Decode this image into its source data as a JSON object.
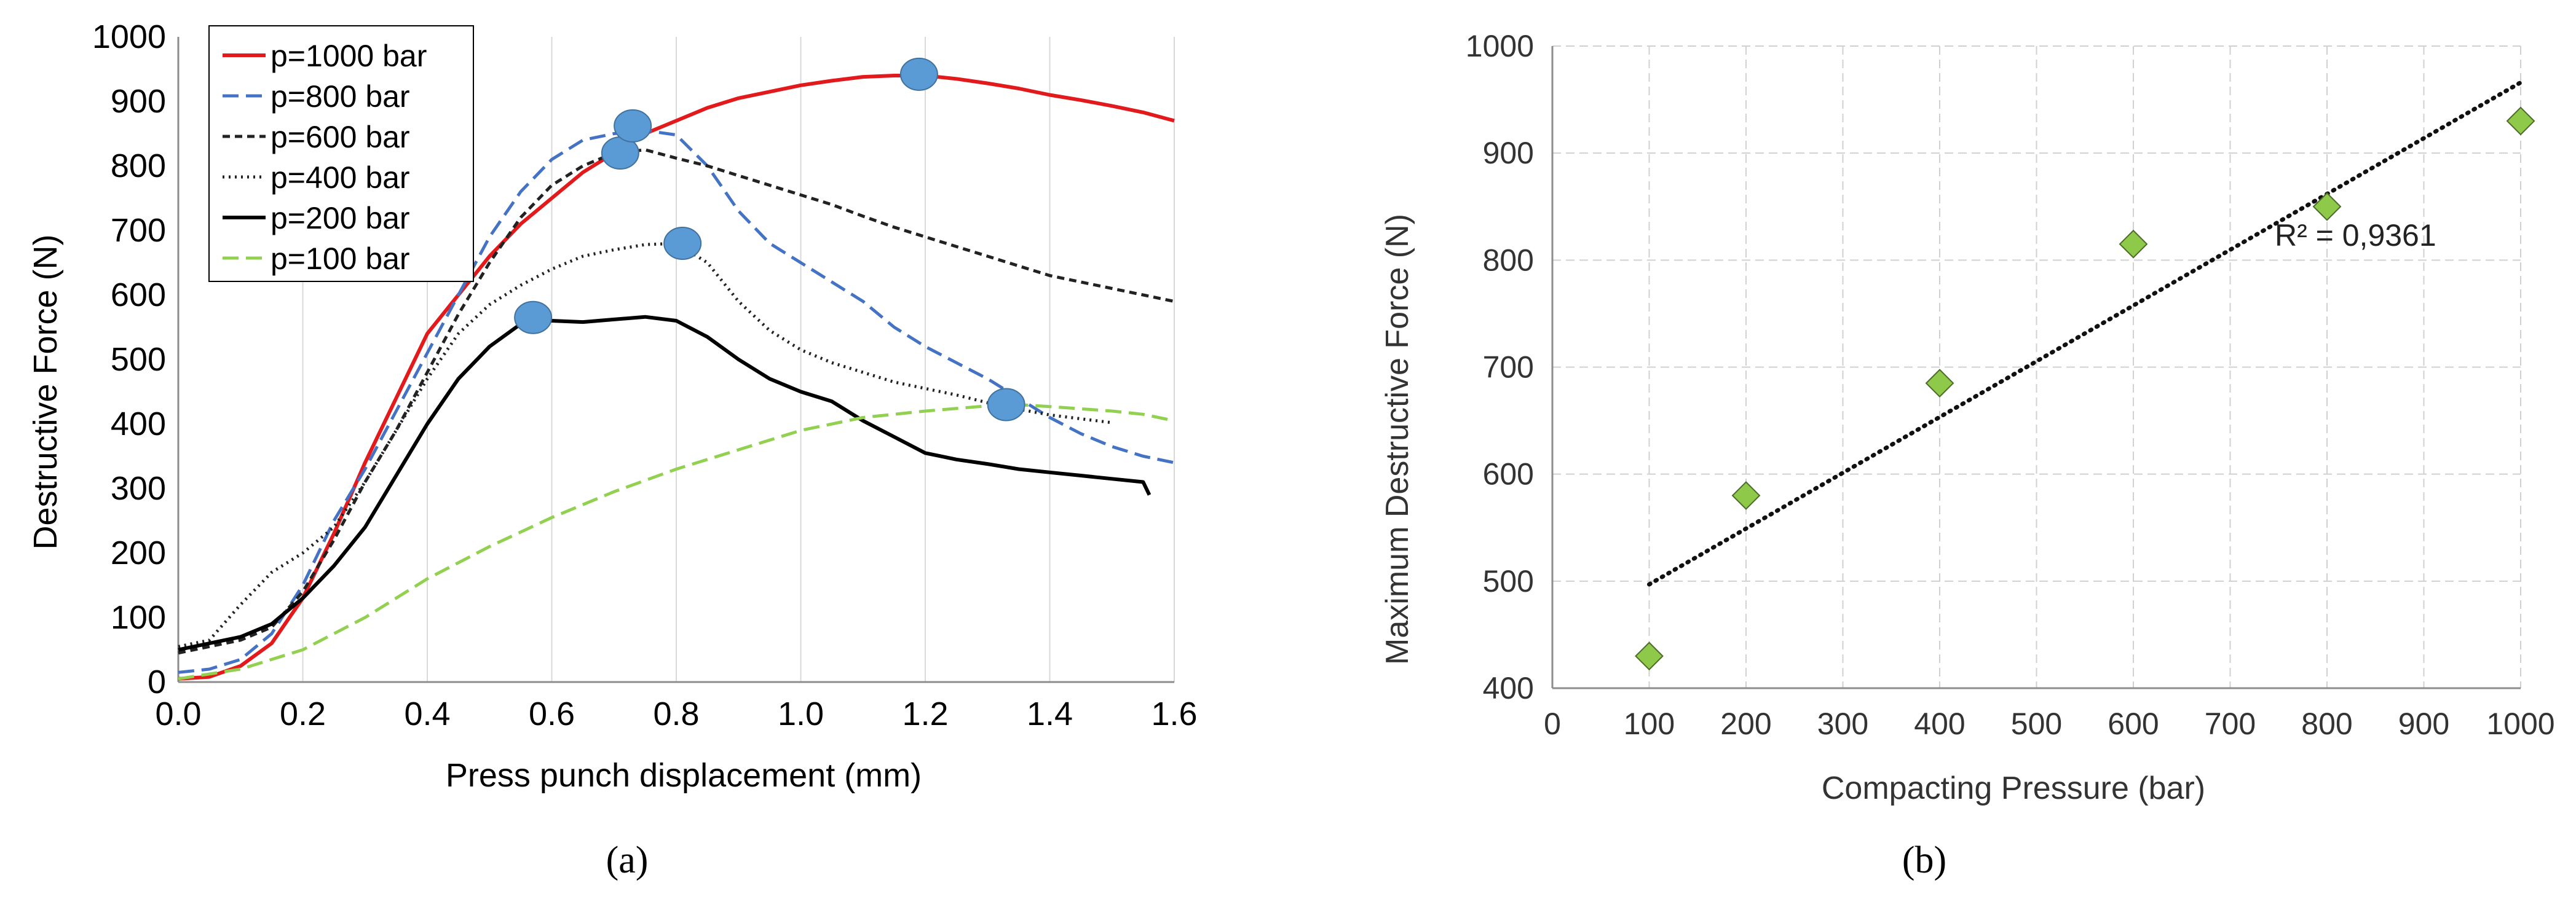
{
  "chart_data": [
    {
      "type": "line",
      "panel_label": "(a)",
      "title": "",
      "xlabel": "Press punch displacement (mm)",
      "ylabel": "Destructive Force (N)",
      "xlim": [
        0,
        1.6
      ],
      "ylim": [
        0,
        1000
      ],
      "xticks": [
        "0.0",
        "0.2",
        "0.4",
        "0.6",
        "0.8",
        "1.0",
        "1.2",
        "1.4",
        "1.6"
      ],
      "yticks": [
        "0",
        "100",
        "200",
        "300",
        "400",
        "500",
        "600",
        "700",
        "800",
        "900",
        "1000"
      ],
      "grid": "vertical",
      "legend_position": "top-left",
      "series": [
        {
          "name": "p=1000 bar",
          "color": "#e31a1c",
          "style": "solid",
          "points": [
            [
              0,
              5
            ],
            [
              0.05,
              8
            ],
            [
              0.1,
              25
            ],
            [
              0.15,
              60
            ],
            [
              0.2,
              130
            ],
            [
              0.25,
              230
            ],
            [
              0.3,
              340
            ],
            [
              0.35,
              440
            ],
            [
              0.4,
              540
            ],
            [
              0.45,
              600
            ],
            [
              0.5,
              660
            ],
            [
              0.55,
              710
            ],
            [
              0.6,
              750
            ],
            [
              0.65,
              790
            ],
            [
              0.7,
              820
            ],
            [
              0.75,
              850
            ],
            [
              0.8,
              870
            ],
            [
              0.85,
              890
            ],
            [
              0.9,
              905
            ],
            [
              0.95,
              915
            ],
            [
              1.0,
              925
            ],
            [
              1.05,
              932
            ],
            [
              1.1,
              938
            ],
            [
              1.15,
              940
            ],
            [
              1.2,
              940
            ],
            [
              1.25,
              935
            ],
            [
              1.3,
              928
            ],
            [
              1.35,
              920
            ],
            [
              1.4,
              910
            ],
            [
              1.45,
              902
            ],
            [
              1.5,
              893
            ],
            [
              1.55,
              883
            ],
            [
              1.6,
              870
            ]
          ]
        },
        {
          "name": "p=800 bar",
          "color": "#4472c4",
          "style": "dashed",
          "points": [
            [
              0,
              15
            ],
            [
              0.05,
              20
            ],
            [
              0.1,
              35
            ],
            [
              0.15,
              75
            ],
            [
              0.2,
              150
            ],
            [
              0.25,
              250
            ],
            [
              0.3,
              330
            ],
            [
              0.35,
              420
            ],
            [
              0.4,
              510
            ],
            [
              0.45,
              600
            ],
            [
              0.5,
              690
            ],
            [
              0.55,
              760
            ],
            [
              0.6,
              810
            ],
            [
              0.65,
              840
            ],
            [
              0.7,
              850
            ],
            [
              0.75,
              855
            ],
            [
              0.8,
              848
            ],
            [
              0.85,
              800
            ],
            [
              0.9,
              730
            ],
            [
              0.95,
              680
            ],
            [
              1.0,
              650
            ],
            [
              1.05,
              620
            ],
            [
              1.1,
              590
            ],
            [
              1.15,
              550
            ],
            [
              1.2,
              520
            ],
            [
              1.25,
              495
            ],
            [
              1.3,
              470
            ],
            [
              1.35,
              440
            ],
            [
              1.4,
              410
            ],
            [
              1.45,
              385
            ],
            [
              1.5,
              365
            ],
            [
              1.55,
              350
            ],
            [
              1.6,
              340
            ]
          ]
        },
        {
          "name": "p=600 bar",
          "color": "#222222",
          "style": "short-dash",
          "points": [
            [
              0,
              45
            ],
            [
              0.05,
              55
            ],
            [
              0.1,
              65
            ],
            [
              0.15,
              85
            ],
            [
              0.2,
              140
            ],
            [
              0.25,
              220
            ],
            [
              0.3,
              310
            ],
            [
              0.35,
              390
            ],
            [
              0.4,
              480
            ],
            [
              0.45,
              570
            ],
            [
              0.5,
              650
            ],
            [
              0.55,
              720
            ],
            [
              0.6,
              770
            ],
            [
              0.65,
              800
            ],
            [
              0.7,
              820
            ],
            [
              0.75,
              825
            ],
            [
              0.8,
              812
            ],
            [
              0.85,
              800
            ],
            [
              0.9,
              785
            ],
            [
              0.95,
              770
            ],
            [
              1.0,
              755
            ],
            [
              1.05,
              740
            ],
            [
              1.1,
              722
            ],
            [
              1.15,
              705
            ],
            [
              1.2,
              690
            ],
            [
              1.25,
              675
            ],
            [
              1.3,
              660
            ],
            [
              1.35,
              645
            ],
            [
              1.4,
              630
            ],
            [
              1.45,
              620
            ],
            [
              1.5,
              610
            ],
            [
              1.55,
              600
            ],
            [
              1.6,
              590
            ]
          ]
        },
        {
          "name": "p=400 bar",
          "color": "#222222",
          "style": "dotted",
          "points": [
            [
              0,
              55
            ],
            [
              0.05,
              65
            ],
            [
              0.1,
              120
            ],
            [
              0.15,
              170
            ],
            [
              0.2,
              200
            ],
            [
              0.25,
              240
            ],
            [
              0.3,
              310
            ],
            [
              0.35,
              390
            ],
            [
              0.4,
              470
            ],
            [
              0.45,
              540
            ],
            [
              0.5,
              585
            ],
            [
              0.55,
              615
            ],
            [
              0.6,
              640
            ],
            [
              0.65,
              660
            ],
            [
              0.7,
              670
            ],
            [
              0.75,
              678
            ],
            [
              0.8,
              680
            ],
            [
              0.85,
              650
            ],
            [
              0.9,
              590
            ],
            [
              0.95,
              545
            ],
            [
              1.0,
              515
            ],
            [
              1.05,
              495
            ],
            [
              1.1,
              480
            ],
            [
              1.15,
              465
            ],
            [
              1.2,
              455
            ],
            [
              1.25,
              445
            ],
            [
              1.3,
              433
            ],
            [
              1.35,
              423
            ],
            [
              1.4,
              414
            ],
            [
              1.45,
              408
            ],
            [
              1.5,
              402
            ]
          ]
        },
        {
          "name": "p=200 bar",
          "color": "#000000",
          "style": "solid",
          "points": [
            [
              0,
              50
            ],
            [
              0.05,
              60
            ],
            [
              0.1,
              70
            ],
            [
              0.15,
              90
            ],
            [
              0.2,
              130
            ],
            [
              0.25,
              180
            ],
            [
              0.3,
              240
            ],
            [
              0.35,
              320
            ],
            [
              0.4,
              400
            ],
            [
              0.45,
              470
            ],
            [
              0.5,
              520
            ],
            [
              0.55,
              555
            ],
            [
              0.58,
              565
            ],
            [
              0.6,
              560
            ],
            [
              0.65,
              558
            ],
            [
              0.7,
              562
            ],
            [
              0.75,
              566
            ],
            [
              0.8,
              560
            ],
            [
              0.85,
              535
            ],
            [
              0.9,
              500
            ],
            [
              0.95,
              470
            ],
            [
              1.0,
              450
            ],
            [
              1.05,
              435
            ],
            [
              1.1,
              405
            ],
            [
              1.15,
              380
            ],
            [
              1.2,
              355
            ],
            [
              1.25,
              345
            ],
            [
              1.3,
              338
            ],
            [
              1.35,
              330
            ],
            [
              1.4,
              325
            ],
            [
              1.45,
              320
            ],
            [
              1.5,
              315
            ],
            [
              1.55,
              310
            ],
            [
              1.56,
              290
            ]
          ]
        },
        {
          "name": "p=100 bar",
          "color": "#92d050",
          "style": "dashed",
          "points": [
            [
              0,
              5
            ],
            [
              0.1,
              20
            ],
            [
              0.2,
              50
            ],
            [
              0.3,
              100
            ],
            [
              0.4,
              160
            ],
            [
              0.5,
              210
            ],
            [
              0.6,
              255
            ],
            [
              0.7,
              295
            ],
            [
              0.8,
              330
            ],
            [
              0.9,
              360
            ],
            [
              1.0,
              390
            ],
            [
              1.1,
              410
            ],
            [
              1.2,
              420
            ],
            [
              1.3,
              428
            ],
            [
              1.35,
              430
            ],
            [
              1.4,
              427
            ],
            [
              1.5,
              420
            ],
            [
              1.55,
              415
            ],
            [
              1.6,
              405
            ]
          ]
        }
      ],
      "peak_markers": [
        [
          0.57,
          565
        ],
        [
          0.71,
          820
        ],
        [
          0.73,
          862
        ],
        [
          0.81,
          680
        ],
        [
          1.19,
          942
        ],
        [
          1.33,
          430
        ]
      ]
    },
    {
      "type": "scatter",
      "panel_label": "(b)",
      "title": "",
      "xlabel": "Compacting Pressure (bar)",
      "ylabel": "Maximum Destructive Force (N)",
      "xlim": [
        0,
        1000
      ],
      "ylim": [
        400,
        1000
      ],
      "xticks": [
        "0",
        "100",
        "200",
        "300",
        "400",
        "500",
        "600",
        "700",
        "800",
        "900",
        "1000"
      ],
      "yticks": [
        "400",
        "500",
        "600",
        "700",
        "800",
        "900",
        "1000"
      ],
      "grid": "both-dashed",
      "marker": "diamond",
      "marker_color": "#8fc94a",
      "x": [
        100,
        200,
        400,
        600,
        800,
        1000
      ],
      "y": [
        430,
        580,
        685,
        815,
        850,
        930
      ],
      "trendline": {
        "type": "linear",
        "style": "dotted",
        "x": [
          100,
          1000
        ],
        "y": [
          497,
          966
        ],
        "label": "R² = 0,9361"
      }
    }
  ]
}
